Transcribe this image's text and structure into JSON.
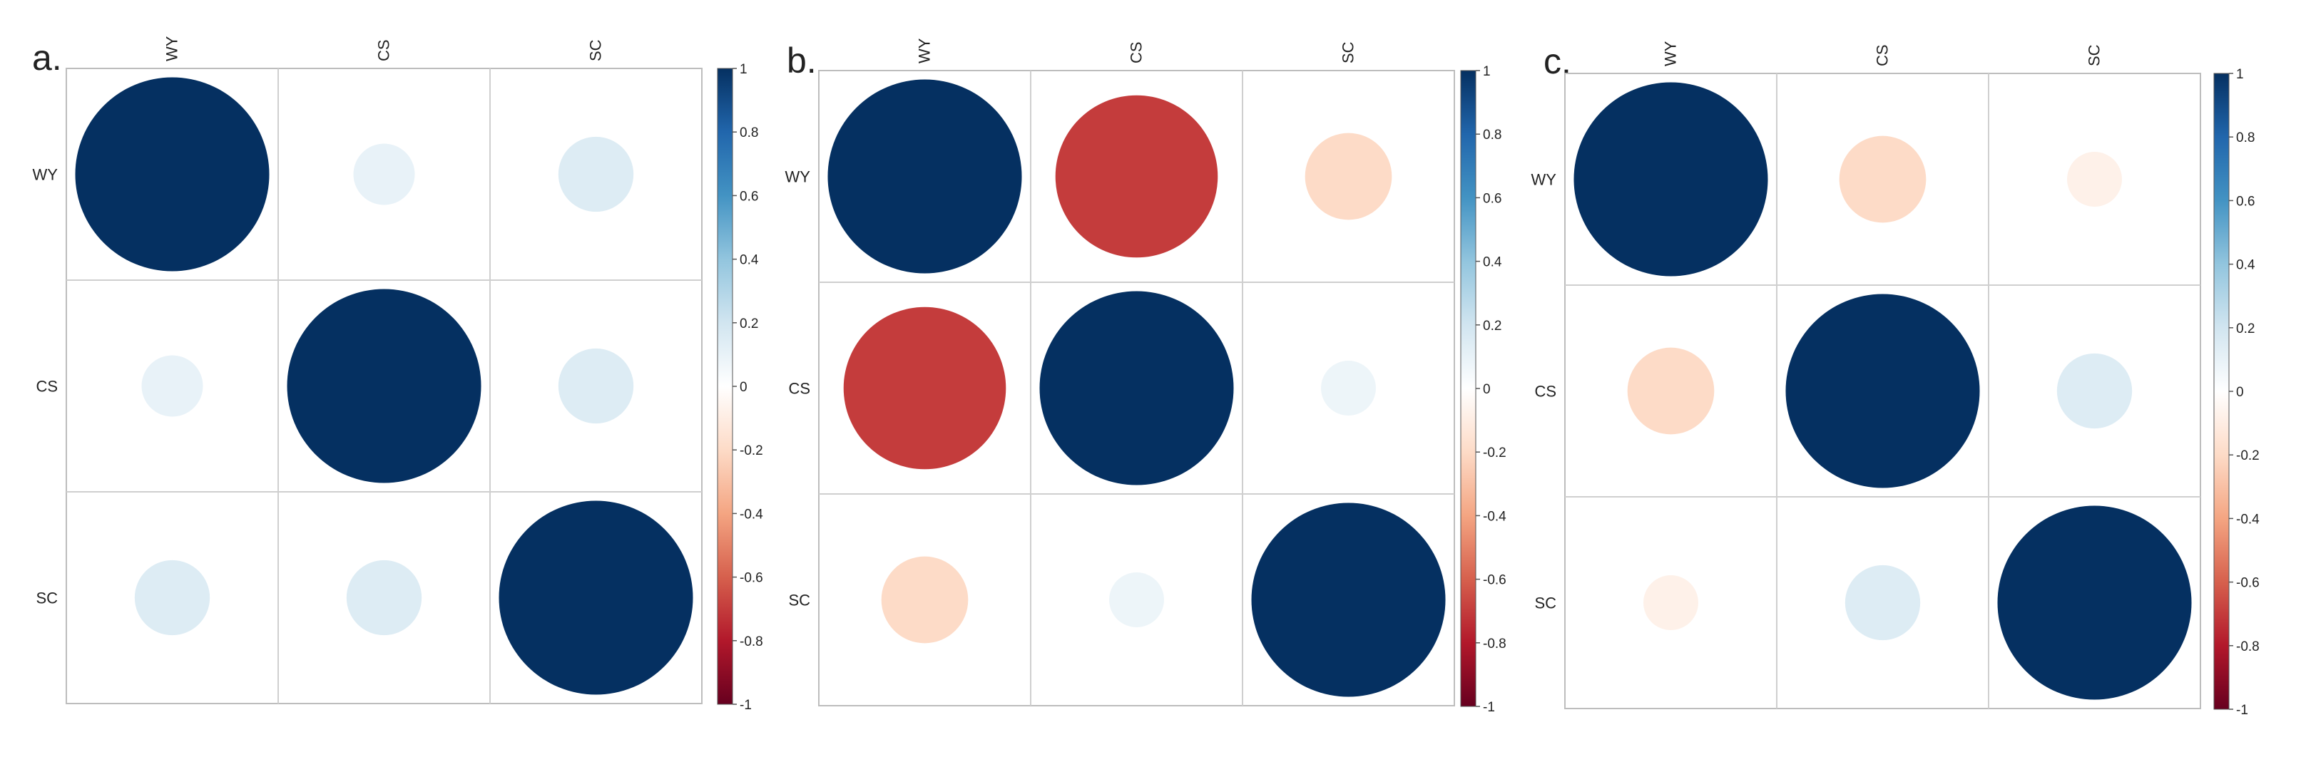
{
  "chart_data": [
    {
      "type": "heatmap",
      "panel_label": "a.",
      "variables": [
        "WY",
        "CS",
        "SC"
      ],
      "matrix": [
        [
          1.0,
          0.1,
          0.15
        ],
        [
          0.1,
          1.0,
          0.15
        ],
        [
          0.15,
          0.15,
          1.0
        ]
      ],
      "colorbar": {
        "range": [
          -1,
          1
        ],
        "ticks": [
          "1",
          "0.8",
          "0.6",
          "0.4",
          "0.2",
          "0",
          "-0.2",
          "-0.4",
          "-0.6",
          "-0.8",
          "-1"
        ]
      }
    },
    {
      "type": "heatmap",
      "panel_label": "b.",
      "variables": [
        "WY",
        "CS",
        "SC"
      ],
      "matrix": [
        [
          1.0,
          -0.7,
          -0.2
        ],
        [
          -0.7,
          1.0,
          0.08
        ],
        [
          -0.2,
          0.08,
          1.0
        ]
      ],
      "colorbar": {
        "range": [
          -1,
          1
        ],
        "ticks": [
          "1",
          "0.8",
          "0.6",
          "0.4",
          "0.2",
          "0",
          "-0.2",
          "-0.4",
          "-0.6",
          "-0.8",
          "-1"
        ]
      }
    },
    {
      "type": "heatmap",
      "panel_label": "c.",
      "variables": [
        "WY",
        "CS",
        "SC"
      ],
      "matrix": [
        [
          1.0,
          -0.2,
          -0.08
        ],
        [
          -0.2,
          1.0,
          0.15
        ],
        [
          -0.08,
          0.15,
          1.0
        ]
      ],
      "colorbar": {
        "range": [
          -1,
          1
        ],
        "ticks": [
          "1",
          "0.8",
          "0.6",
          "0.4",
          "0.2",
          "0",
          "-0.2",
          "-0.4",
          "-0.6",
          "-0.8",
          "-1"
        ]
      }
    }
  ],
  "colors": {
    "negative_strong": "#67001F",
    "negative_mid": "#D6604D",
    "neutral": "#FFFFFF",
    "positive_mid": "#4393C3",
    "positive_strong": "#053061"
  }
}
